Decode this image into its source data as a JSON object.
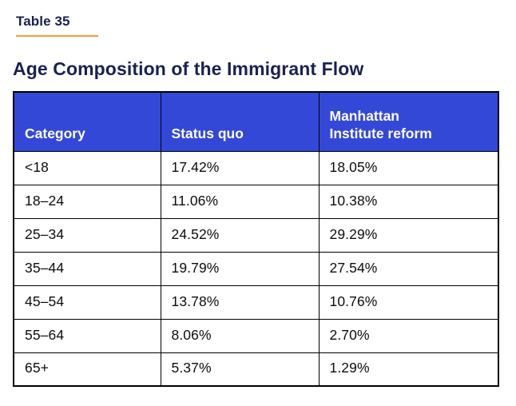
{
  "table_label": "Table 35",
  "page_title": "Age Composition of the Immigrant Flow",
  "colors": {
    "accent_gold": "#EDA233",
    "header_blue": "#3448D8",
    "heading_navy": "#1B2150",
    "border_black": "#000000",
    "cell_text": "#0D0D0D"
  },
  "table": {
    "headers": [
      "Category",
      "Status quo",
      "Manhattan Institute reform"
    ],
    "rows": [
      {
        "category": "<18",
        "status_quo": "17.42%",
        "mi_reform": "18.05%"
      },
      {
        "category": "18–24",
        "status_quo": "11.06%",
        "mi_reform": "10.38%"
      },
      {
        "category": "25–34",
        "status_quo": "24.52%",
        "mi_reform": "29.29%"
      },
      {
        "category": "35–44",
        "status_quo": "19.79%",
        "mi_reform": "27.54%"
      },
      {
        "category": "45–54",
        "status_quo": "13.78%",
        "mi_reform": "10.76%"
      },
      {
        "category": "55–64",
        "status_quo": "8.06%",
        "mi_reform": "2.70%"
      },
      {
        "category": "65+",
        "status_quo": "5.37%",
        "mi_reform": "1.29%"
      }
    ]
  },
  "chart_data": {
    "type": "table",
    "title": "Age Composition of the Immigrant Flow",
    "columns": [
      "Category",
      "Status quo",
      "Manhattan Institute reform"
    ],
    "rows": [
      [
        "<18",
        "17.42%",
        "18.05%"
      ],
      [
        "18–24",
        "11.06%",
        "10.38%"
      ],
      [
        "25–34",
        "24.52%",
        "29.29%"
      ],
      [
        "35–44",
        "19.79%",
        "27.54%"
      ],
      [
        "45–54",
        "13.78%",
        "10.76%"
      ],
      [
        "55–64",
        "8.06%",
        "2.70%"
      ],
      [
        "65+",
        "5.37%",
        "1.29%"
      ]
    ]
  }
}
